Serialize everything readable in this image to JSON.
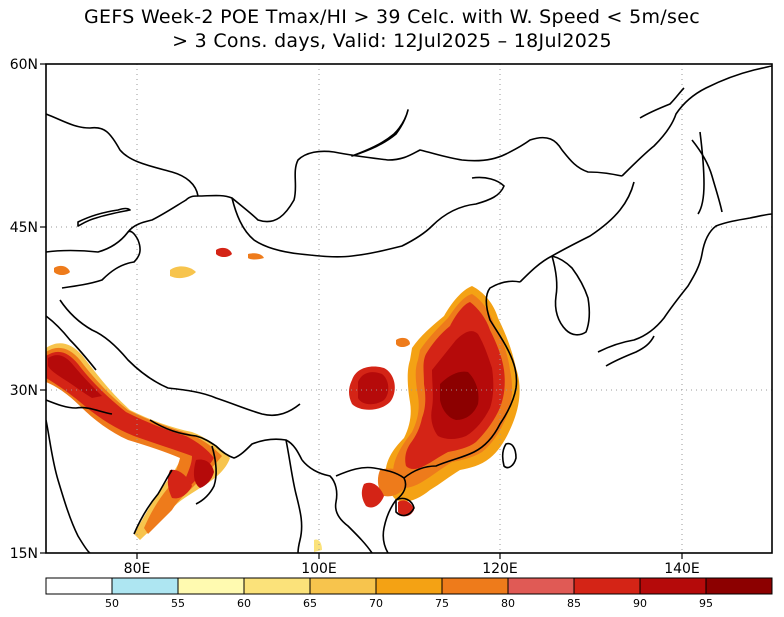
{
  "title": {
    "line1": "GEFS Week-2 POE Tmax/HI > 39 Celc. with W. Speed < 5m/sec",
    "line2": "> 3 Cons. days, Valid: 12Jul2025 – 18Jul2025"
  },
  "axes": {
    "x_ticks": [
      "80E",
      "100E",
      "120E",
      "140E"
    ],
    "y_ticks": [
      "60N",
      "45N",
      "30N",
      "15N"
    ],
    "lon_range": [
      70,
      150
    ],
    "lat_range": [
      15,
      60
    ],
    "grid": "dotted"
  },
  "colorbar": {
    "levels": [
      "50",
      "55",
      "60",
      "65",
      "70",
      "75",
      "80",
      "85",
      "90",
      "95"
    ],
    "colors": [
      "#ffffff",
      "#aee6f2",
      "#fffab0",
      "#fbe27a",
      "#f7c44d",
      "#f4a214",
      "#ee7b1b",
      "#e05a55",
      "#d42416",
      "#b50a0a",
      "#8c0000"
    ]
  }
}
